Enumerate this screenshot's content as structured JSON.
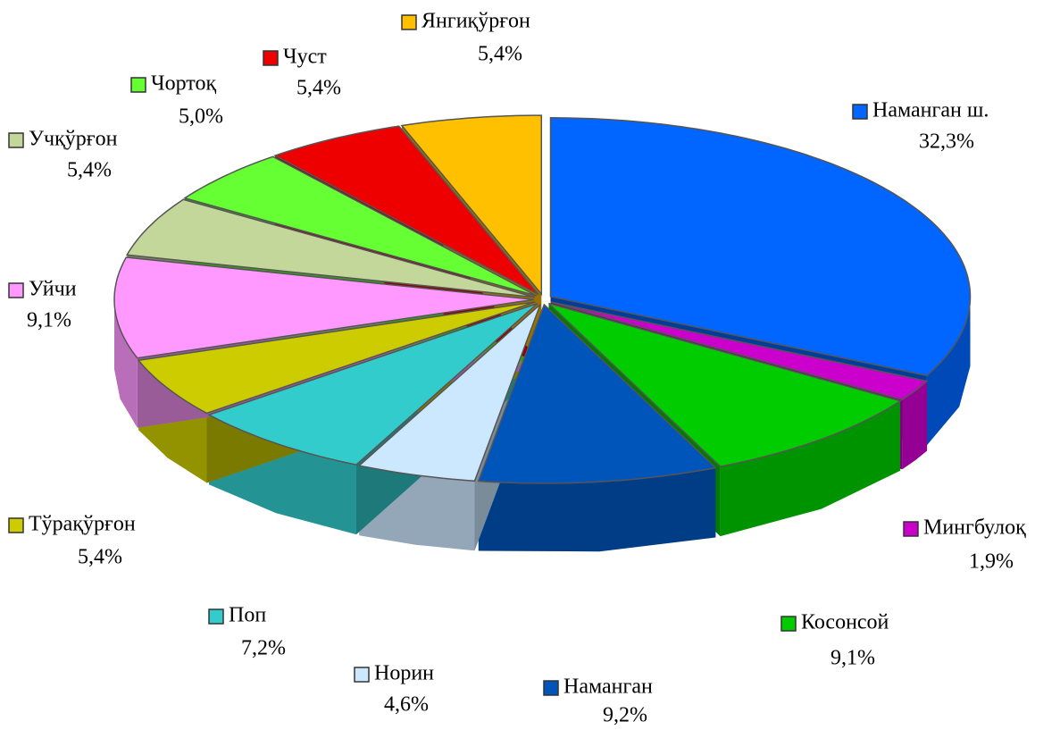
{
  "chart_data": {
    "type": "pie",
    "categories": [
      "Наманган ш.",
      "Мингбулоқ",
      "Косонсой",
      "Наманган",
      "Норин",
      "Поп",
      "Тўрақўрғон",
      "Уйчи",
      "Учқўрғон",
      "Чортоқ",
      "Чуст",
      "Янгиқўрғон"
    ],
    "values": [
      32.3,
      1.9,
      9.1,
      9.2,
      4.6,
      7.2,
      5.4,
      9.1,
      5.4,
      5.0,
      5.4,
      5.4
    ],
    "value_labels": [
      "32,3%",
      "1,9%",
      "9,1%",
      "9,2%",
      "4,6%",
      "7,2%",
      "5,4%",
      "9,1%",
      "5,4%",
      "5,0%",
      "5,4%",
      "5,4%"
    ],
    "colors": [
      "#0066ff",
      "#cc00cc",
      "#00cc00",
      "#0055bb",
      "#cce8ff",
      "#33cccc",
      "#cccc00",
      "#ff99ff",
      "#c4d79b",
      "#66ff33",
      "#ee0000",
      "#ffc000"
    ]
  }
}
